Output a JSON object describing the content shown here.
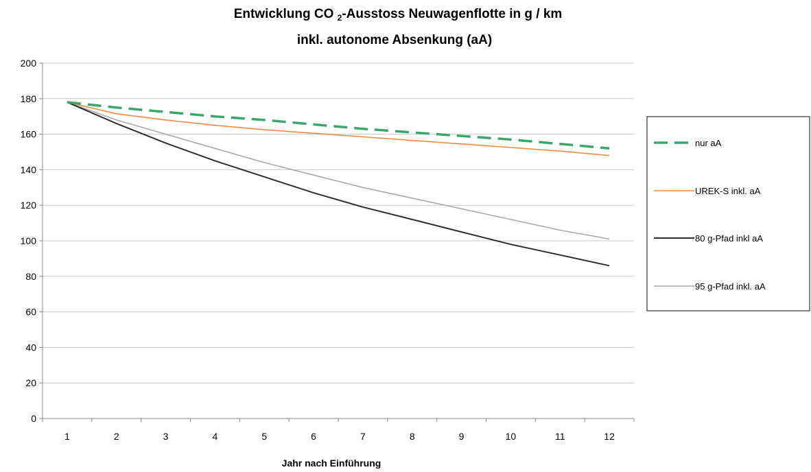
{
  "chart_data": {
    "type": "line",
    "title": {
      "pre": "Entwicklung CO ",
      "sub": "2",
      "post": "-Ausstoss Neuwagenflotte in g / km",
      "line2": "inkl. autonome Absenkung (aA)"
    },
    "xlabel": "Jahr nach Einführung",
    "ylabel": "",
    "x": [
      1,
      2,
      3,
      4,
      5,
      6,
      7,
      8,
      9,
      10,
      11,
      12
    ],
    "x_ticks": [
      "1",
      "2",
      "3",
      "4",
      "5",
      "6",
      "7",
      "8",
      "9",
      "10",
      "11",
      "12"
    ],
    "ylim": [
      0,
      200
    ],
    "y_ticks": [
      "0",
      "20",
      "40",
      "60",
      "80",
      "100",
      "120",
      "140",
      "160",
      "180",
      "200"
    ],
    "y_tick_values": [
      0,
      20,
      40,
      60,
      80,
      100,
      120,
      140,
      160,
      180,
      200
    ],
    "grid": true,
    "legend": "right",
    "series": [
      {
        "name": "nur aA",
        "color": "#3aa66b",
        "style": "dashed",
        "values": [
          178,
          175,
          172.5,
          170,
          168,
          165.5,
          163,
          161,
          159,
          157,
          154.5,
          152
        ]
      },
      {
        "name": "UREK-S inkl. aA",
        "color": "#f28a3c",
        "style": "solid",
        "values": [
          178,
          171.5,
          168,
          165,
          162.5,
          160.5,
          158.5,
          156.5,
          154.5,
          152.5,
          150.5,
          148
        ]
      },
      {
        "name": "80 g-Pfad inkl aA",
        "color": "#2e2e2e",
        "style": "solid",
        "values": [
          178,
          166,
          155,
          145,
          136,
          127,
          119,
          112,
          105,
          98,
          92,
          86
        ]
      },
      {
        "name": "95 g-Pfad inkl. aA",
        "color": "#a8a8a8",
        "style": "solid",
        "values": [
          178,
          168,
          160,
          152,
          144,
          137,
          130,
          124,
          118,
          112,
          106,
          101
        ]
      }
    ]
  }
}
